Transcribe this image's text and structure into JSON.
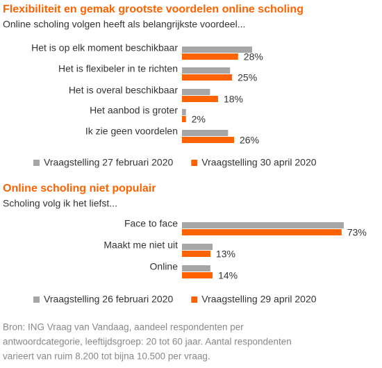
{
  "chart_data": [
    {
      "type": "bar",
      "orientation": "horizontal",
      "title": "Flexibiliteit en gemak grootste voordelen online scholing",
      "subtitle": "Online scholing volgen heeft als belangrijkste voordeel...",
      "categories": [
        "Het is op elk moment beschikbaar",
        "Het is flexibeler in te richten",
        "Het is overal beschikbaar",
        "Het aanbod is groter",
        "Ik zie geen voordelen"
      ],
      "series": [
        {
          "name": "Vraagstelling 27 februari 2020",
          "color": "#a6a6a6",
          "values": [
            35,
            24,
            14,
            2,
            23
          ]
        },
        {
          "name": "Vraagstelling 30 april 2020",
          "color": "#ff6200",
          "values": [
            28,
            25,
            18,
            2,
            26
          ],
          "value_labels": [
            "28%",
            "25%",
            "18%",
            "2%",
            "26%"
          ]
        }
      ],
      "legend": "bottom"
    },
    {
      "type": "bar",
      "orientation": "horizontal",
      "title": "Online scholing niet populair",
      "subtitle": "Scholing volg ik het liefst...",
      "categories": [
        "Face to face",
        "Maakt me niet uit",
        "Online"
      ],
      "series": [
        {
          "name": "Vraagstelling 26 februari 2020",
          "color": "#a6a6a6",
          "values": [
            74,
            14,
            13
          ]
        },
        {
          "name": "Vraagstelling 29 april 2020",
          "color": "#ff6200",
          "values": [
            73,
            13,
            14
          ],
          "value_labels": [
            "73%",
            "13%",
            "14%"
          ]
        }
      ],
      "legend": "bottom"
    }
  ],
  "source": [
    "Bron: ING Vraag van Vandaag, aandeel respondenten per",
    "antwoordcategorie, leeftijdsgroep: 20 tot 60 jaar. Aantal respondenten",
    "varieert van ruim 8.200 tot bijna 10.500 per vraag."
  ]
}
